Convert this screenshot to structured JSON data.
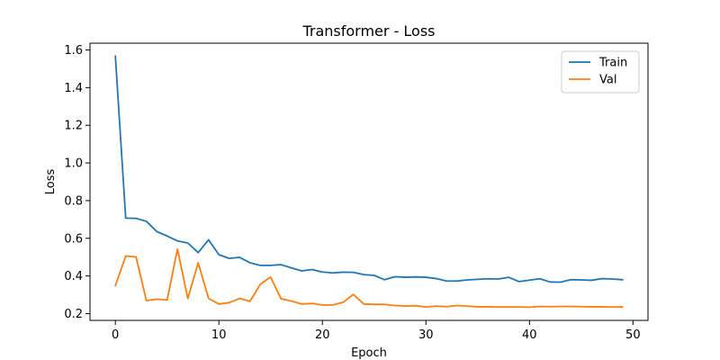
{
  "chart_data": {
    "type": "line",
    "title": "Transformer - Loss",
    "xlabel": "Epoch",
    "ylabel": "Loss",
    "xlim": [
      -2.45,
      51.45
    ],
    "ylim": [
      0.164,
      1.636
    ],
    "xticks": [
      0,
      10,
      20,
      30,
      40,
      50
    ],
    "yticks": [
      0.2,
      0.4,
      0.6,
      0.8,
      1.0,
      1.2,
      1.4,
      1.6
    ],
    "ytick_labels": [
      "0.2",
      "0.4",
      "0.6",
      "0.8",
      "1.0",
      "1.2",
      "1.4",
      "1.6"
    ],
    "grid": false,
    "legend_position": "top-right",
    "x": [
      0,
      1,
      2,
      3,
      4,
      5,
      6,
      7,
      8,
      9,
      10,
      11,
      12,
      13,
      14,
      15,
      16,
      17,
      18,
      19,
      20,
      21,
      22,
      23,
      24,
      25,
      26,
      27,
      28,
      29,
      30,
      31,
      32,
      33,
      34,
      35,
      36,
      37,
      38,
      39,
      40,
      41,
      42,
      43,
      44,
      45,
      46,
      47,
      48,
      49
    ],
    "series": [
      {
        "name": "Train",
        "color": "#1f77b4",
        "values": [
          1.568,
          0.707,
          0.706,
          0.69,
          0.636,
          0.612,
          0.586,
          0.575,
          0.524,
          0.592,
          0.513,
          0.493,
          0.499,
          0.47,
          0.456,
          0.456,
          0.46,
          0.443,
          0.427,
          0.434,
          0.421,
          0.416,
          0.42,
          0.419,
          0.407,
          0.403,
          0.38,
          0.396,
          0.393,
          0.395,
          0.393,
          0.386,
          0.373,
          0.373,
          0.379,
          0.382,
          0.385,
          0.384,
          0.393,
          0.37,
          0.378,
          0.385,
          0.368,
          0.367,
          0.38,
          0.379,
          0.377,
          0.386,
          0.384,
          0.38
        ]
      },
      {
        "name": "Val",
        "color": "#ff7f0e",
        "values": [
          0.348,
          0.506,
          0.501,
          0.269,
          0.277,
          0.272,
          0.543,
          0.28,
          0.47,
          0.281,
          0.251,
          0.258,
          0.281,
          0.265,
          0.356,
          0.394,
          0.279,
          0.267,
          0.251,
          0.254,
          0.246,
          0.246,
          0.26,
          0.302,
          0.251,
          0.249,
          0.249,
          0.243,
          0.24,
          0.242,
          0.235,
          0.24,
          0.237,
          0.243,
          0.24,
          0.236,
          0.236,
          0.235,
          0.235,
          0.235,
          0.234,
          0.238,
          0.237,
          0.238,
          0.238,
          0.237,
          0.236,
          0.236,
          0.235,
          0.236
        ]
      }
    ]
  }
}
